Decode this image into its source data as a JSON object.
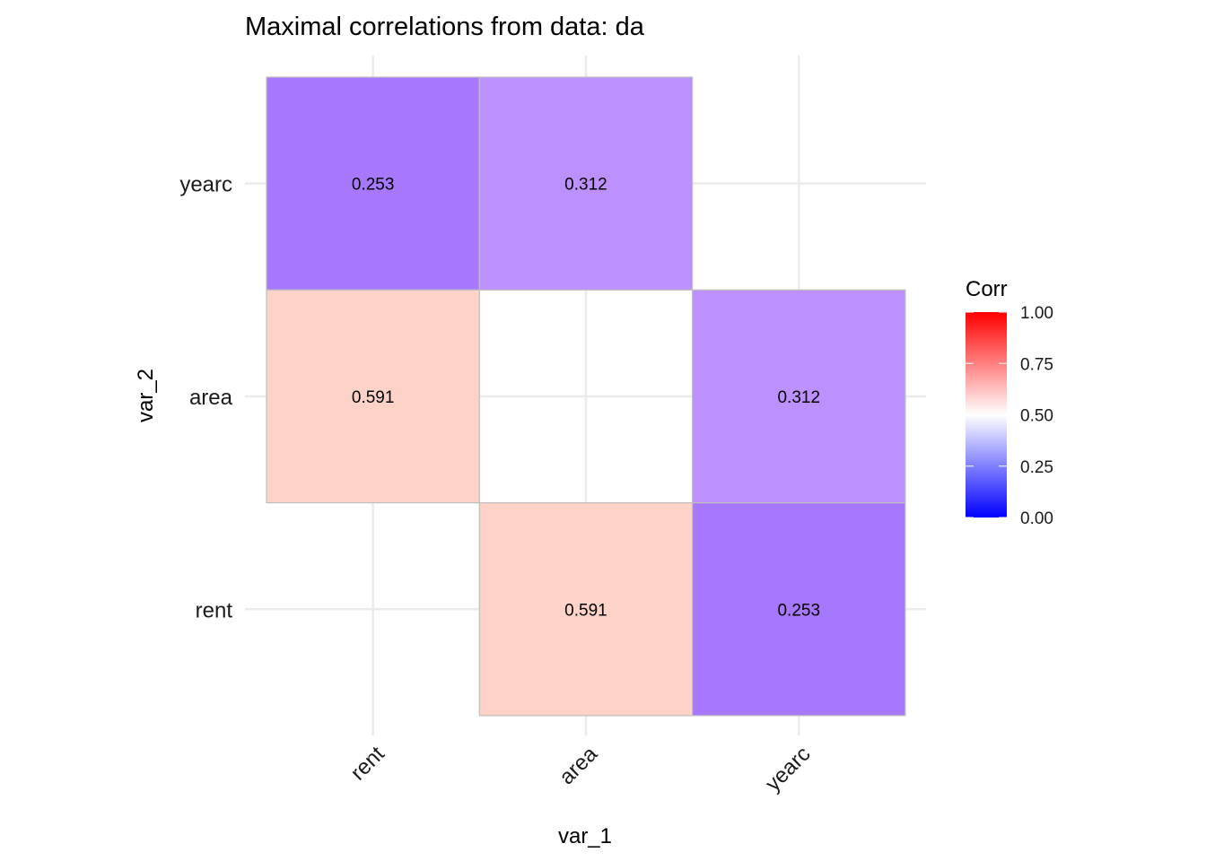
{
  "chart_data": {
    "type": "heatmap",
    "title": "Maximal correlations from data: da",
    "xlabel": "var_1",
    "ylabel": "var_2",
    "x_categories": [
      "rent",
      "area",
      "yearc"
    ],
    "y_categories": [
      "rent",
      "area",
      "yearc"
    ],
    "cells": [
      {
        "var_1": "rent",
        "var_2": "yearc",
        "value": 0.253,
        "label": "0.253"
      },
      {
        "var_1": "area",
        "var_2": "yearc",
        "value": 0.312,
        "label": "0.312"
      },
      {
        "var_1": "rent",
        "var_2": "area",
        "value": 0.591,
        "label": "0.591"
      },
      {
        "var_1": "yearc",
        "var_2": "area",
        "value": 0.312,
        "label": "0.312"
      },
      {
        "var_1": "area",
        "var_2": "rent",
        "value": 0.591,
        "label": "0.591"
      },
      {
        "var_1": "yearc",
        "var_2": "rent",
        "value": 0.253,
        "label": "0.253"
      }
    ],
    "legend": {
      "title": "Corr",
      "position": "right",
      "range": [
        0,
        1
      ],
      "midpoint": 0.5,
      "ticks": [
        1.0,
        0.75,
        0.5,
        0.25,
        0.0
      ],
      "tick_labels": [
        "1.00",
        "0.75",
        "0.50",
        "0.25",
        "0.00"
      ],
      "colors": {
        "low": "#0000ff",
        "mid": "#ffffff",
        "high": "#ff0000"
      }
    },
    "grid": true,
    "x_tick_rotation_deg": 45
  }
}
